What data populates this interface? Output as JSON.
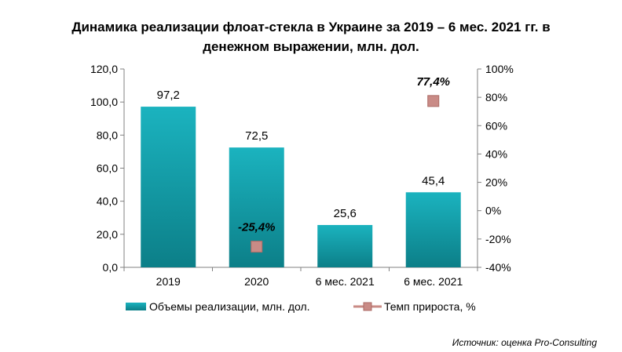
{
  "chart_data": {
    "type": "bar",
    "title": "Динамика реализации флоат-стекла в Украине за 2019 – 6 мес. 2021 гг. в денежном выражении, млн. дол.",
    "title_lines": [
      "Динамика реализации флоат-стекла в Украине за 2019 – 6 мес. 2021 гг. в",
      "денежном выражении, млн. дол."
    ],
    "categories": [
      "2019",
      "2020",
      "6 мес. 2021",
      "6 мес. 2021"
    ],
    "series": [
      {
        "name": "Объемы реализации,  млн. дол.",
        "kind": "bar",
        "axis": "left",
        "values": [
          97.2,
          72.5,
          25.6,
          45.4
        ],
        "labels": [
          "97,2",
          "72,5",
          "25,6",
          "45,4"
        ]
      },
      {
        "name": "Темп прироста, %",
        "kind": "marker",
        "axis": "right",
        "values": [
          null,
          -25.4,
          null,
          77.4
        ],
        "labels": [
          null,
          "-25,4%",
          null,
          "77,4%"
        ]
      }
    ],
    "ylim_left": [
      0,
      120
    ],
    "yticks_left": [
      "0,0",
      "20,0",
      "40,0",
      "60,0",
      "80,0",
      "100,0",
      "120,0"
    ],
    "ylim_right": [
      -40,
      100
    ],
    "yticks_right": [
      "-40%",
      "-20%",
      "0%",
      "20%",
      "40%",
      "60%",
      "80%",
      "100%"
    ],
    "grid": false,
    "legend_position": "bottom",
    "source": "Источник: оценка Pro-Consulting",
    "colors": {
      "bar_top": "#1bb3bf",
      "bar_bottom": "#0c7f88",
      "marker": "#c98b86",
      "marker_border": "#ab6a64",
      "axis": "#808080"
    }
  }
}
